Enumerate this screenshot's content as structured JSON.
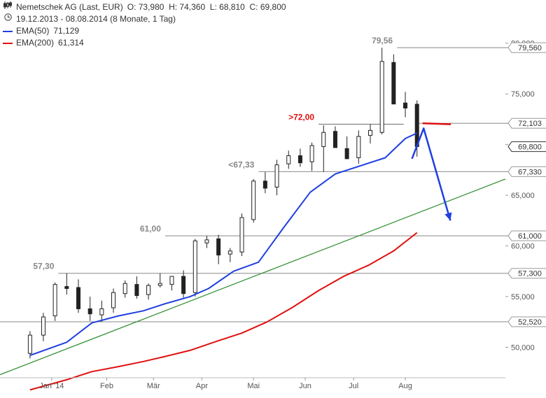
{
  "legend": {
    "instrument": "Nemetschek AG (Last, EUR)",
    "ohlc": "O: 73,980  H: 74,360  L: 68,810  C: 69,800",
    "period": "19.12.2013 - 08.08.2014 (8 Monate, 1 Tag)",
    "ema50_label": "EMA(50)",
    "ema50_value": "71,129",
    "ema200_label": "EMA(200)",
    "ema200_value": "61,314",
    "chart_icon": "candlestick-icon",
    "period_icon": "clock-icon"
  },
  "colors": {
    "ema50": "#1f3fe0",
    "ema200": "#e01010",
    "trendline": "#2a8a2a",
    "arrow": "#1f3fe0",
    "annotation_red": "#e01010",
    "level_line": "#888888"
  },
  "chart_data": {
    "type": "line",
    "title": "",
    "xlabel": "",
    "ylabel": "",
    "x_ticks": [
      "Jan '14",
      "Feb",
      "Mär",
      "Apr",
      "Mai",
      "Jun",
      "Jul",
      "Aug"
    ],
    "y_ticks": [
      "50,000",
      "55,000",
      "60,000",
      "65,000",
      "70,000",
      "75,000",
      "80,000"
    ],
    "ylim": [
      47.0,
      81.5
    ],
    "grid": false,
    "series": [
      {
        "name": "EMA(50)",
        "x": [
          "2013-12-19",
          "2014-01-10",
          "2014-01-25",
          "2014-02-10",
          "2014-02-25",
          "2014-03-10",
          "2014-03-25",
          "2014-04-05",
          "2014-04-20",
          "2014-05-05",
          "2014-05-20",
          "2014-06-05",
          "2014-06-20",
          "2014-07-05",
          "2014-07-20",
          "2014-08-01",
          "2014-08-08"
        ],
        "values": [
          49.2,
          50.5,
          52.4,
          53.1,
          53.6,
          54.3,
          55.0,
          55.8,
          57.5,
          58.4,
          61.8,
          65.3,
          67.1,
          67.9,
          68.7,
          70.6,
          71.13
        ]
      },
      {
        "name": "EMA(200)",
        "x": [
          "2013-12-19",
          "2014-01-10",
          "2014-01-25",
          "2014-02-10",
          "2014-02-25",
          "2014-03-10",
          "2014-03-25",
          "2014-04-10",
          "2014-04-25",
          "2014-05-10",
          "2014-05-25",
          "2014-06-10",
          "2014-06-25",
          "2014-07-10",
          "2014-07-25",
          "2014-08-08"
        ],
        "values": [
          45.8,
          46.8,
          47.6,
          48.1,
          48.6,
          49.1,
          49.7,
          50.6,
          51.4,
          52.5,
          53.9,
          55.6,
          57.0,
          58.1,
          59.5,
          61.31
        ]
      },
      {
        "name": "",
        "type": "candlestick",
        "x": [
          "2013-12-19",
          "2013-12-27",
          "2014-01-03",
          "2014-01-10",
          "2014-01-17",
          "2014-01-24",
          "2014-01-31",
          "2014-02-07",
          "2014-02-14",
          "2014-02-21",
          "2014-02-28",
          "2014-03-07",
          "2014-03-14",
          "2014-03-21",
          "2014-03-28",
          "2014-04-04",
          "2014-04-11",
          "2014-04-18",
          "2014-04-25",
          "2014-05-02",
          "2014-05-09",
          "2014-05-16",
          "2014-05-23",
          "2014-05-30",
          "2014-06-06",
          "2014-06-13",
          "2014-06-20",
          "2014-06-27",
          "2014-07-04",
          "2014-07-11",
          "2014-07-18",
          "2014-07-25",
          "2014-08-01",
          "2014-08-08"
        ],
        "open": [
          49.4,
          51.2,
          53.1,
          56.0,
          55.9,
          53.8,
          53.2,
          53.9,
          55.3,
          56.2,
          55.2,
          56.1,
          56.2,
          57.0,
          55.4,
          60.3,
          60.7,
          59.2,
          59.4,
          62.6,
          66.4,
          65.8,
          68.1,
          68.9,
          68.3,
          69.8,
          71.3,
          69.6,
          68.7,
          70.9,
          71.2,
          78.1,
          74.1,
          73.98
        ],
        "high": [
          51.6,
          53.4,
          56.4,
          57.3,
          56.7,
          55.0,
          54.6,
          55.8,
          56.6,
          57.0,
          56.3,
          57.3,
          56.8,
          57.6,
          60.7,
          61.0,
          61.1,
          59.8,
          63.2,
          66.6,
          67.3,
          68.5,
          69.4,
          69.6,
          70.2,
          71.9,
          71.8,
          70.8,
          71.4,
          72.0,
          79.56,
          78.9,
          75.2,
          74.36
        ],
        "low": [
          48.9,
          50.6,
          52.6,
          55.2,
          53.4,
          52.6,
          52.5,
          53.4,
          54.9,
          54.8,
          54.7,
          55.9,
          55.6,
          54.9,
          55.0,
          59.8,
          58.2,
          58.4,
          59.0,
          62.3,
          65.2,
          65.0,
          67.6,
          67.8,
          67.4,
          67.3,
          69.8,
          68.7,
          68.1,
          70.1,
          71.0,
          74.0,
          72.7,
          68.81
        ],
        "close": [
          51.2,
          53.0,
          56.2,
          55.8,
          53.8,
          53.3,
          53.8,
          55.4,
          56.3,
          55.1,
          56.1,
          56.3,
          57.0,
          55.3,
          60.5,
          60.6,
          59.1,
          59.5,
          62.8,
          66.4,
          65.7,
          68.0,
          68.9,
          68.2,
          69.9,
          71.2,
          69.7,
          68.6,
          70.8,
          71.4,
          78.2,
          74.0,
          73.6,
          69.8
        ]
      }
    ],
    "levels": [
      {
        "value": 79.56,
        "label": "79,56",
        "axis_label": "79,560",
        "x_start": "2014-07-27"
      },
      {
        "value": 72.103,
        "label": "",
        "axis_label": "72,103",
        "x_start": "2014-08-08"
      },
      {
        "value": 72.0,
        "label": ">72,00",
        "axis_label": "",
        "x_start": "2014-06-10",
        "x_end": "2014-07-31"
      },
      {
        "value": 69.8,
        "label": "",
        "axis_label": "69,800",
        "x_start": "2014-08-08",
        "marker": true
      },
      {
        "value": 67.33,
        "label": "<67,33",
        "axis_label": "67,330",
        "x_start": "2014-05-05"
      },
      {
        "value": 61.0,
        "label": "61,00",
        "axis_label": "61,000",
        "x_start": "2014-03-10"
      },
      {
        "value": 57.3,
        "label": "57,30",
        "axis_label": "57,300",
        "x_start": "2014-01-05"
      },
      {
        "value": 52.52,
        "label": "52,52",
        "axis_label": "52,520",
        "x_start": "2013-12-01"
      }
    ],
    "trendline": {
      "x": [
        "2013-12-01",
        "2014-09-30"
      ],
      "y": [
        47.3,
        66.6
      ]
    },
    "resistance_mark": {
      "x": [
        "2014-08-08",
        "2014-08-25"
      ],
      "y": [
        72.1,
        72.0
      ]
    },
    "forecast_arrow": {
      "x": [
        "2014-08-05",
        "2014-08-12",
        "2014-08-28"
      ],
      "y": [
        68.6,
        71.6,
        62.5
      ]
    }
  }
}
